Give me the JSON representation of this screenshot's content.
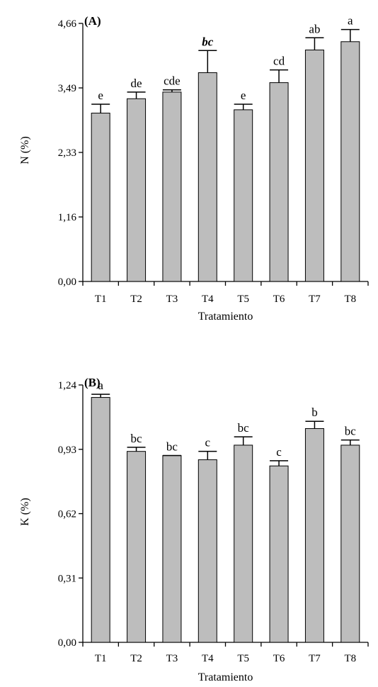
{
  "chart_data": [
    {
      "type": "bar",
      "panel_label": "(A)",
      "ylabel": "N (%)",
      "xlabel": "Tratamiento",
      "categories": [
        "T1",
        "T2",
        "T3",
        "T4",
        "T5",
        "T6",
        "T7",
        "T8"
      ],
      "values": [
        3.04,
        3.3,
        3.42,
        3.77,
        3.1,
        3.59,
        4.18,
        4.33
      ],
      "errors": [
        0.16,
        0.12,
        0.04,
        0.4,
        0.1,
        0.23,
        0.22,
        0.22
      ],
      "significance": [
        "e",
        "de",
        "cde",
        "bc",
        "e",
        "cd",
        "ab",
        "a"
      ],
      "significance_italic": [
        false,
        false,
        false,
        true,
        false,
        false,
        false,
        false
      ],
      "ylim": [
        0,
        4.66
      ],
      "yticks": [
        "0,00",
        "1,16",
        "2,33",
        "3,49",
        "4,66"
      ],
      "grid": false
    },
    {
      "type": "bar",
      "panel_label": "(B)",
      "ylabel": "K (%)",
      "xlabel": "Tratamiento",
      "categories": [
        "T1",
        "T2",
        "T3",
        "T4",
        "T5",
        "T6",
        "T7",
        "T8"
      ],
      "values": [
        1.18,
        0.92,
        0.9,
        0.88,
        0.95,
        0.85,
        1.03,
        0.95
      ],
      "errors": [
        0.015,
        0.02,
        0.0,
        0.04,
        0.04,
        0.025,
        0.035,
        0.025
      ],
      "significance": [
        "a",
        "bc",
        "bc",
        "c",
        "bc",
        "c",
        "b",
        "bc"
      ],
      "significance_italic": [
        false,
        false,
        false,
        false,
        false,
        false,
        false,
        false
      ],
      "ylim": [
        0,
        1.24
      ],
      "yticks": [
        "0,00",
        "0,31",
        "0,62",
        "0,93",
        "1,24"
      ],
      "grid": false
    }
  ],
  "colors": {
    "bar_fill": "#bdbdbd",
    "axis": "#000000"
  }
}
